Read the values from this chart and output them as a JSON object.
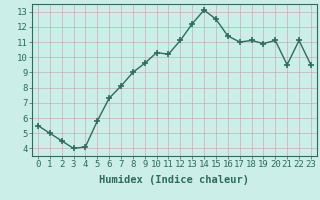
{
  "x": [
    0,
    1,
    2,
    3,
    4,
    5,
    6,
    7,
    8,
    9,
    10,
    11,
    12,
    13,
    14,
    15,
    16,
    17,
    18,
    19,
    20,
    21,
    22,
    23
  ],
  "y": [
    5.5,
    5.0,
    4.5,
    4.0,
    4.1,
    5.8,
    7.3,
    8.1,
    9.0,
    9.6,
    10.3,
    10.2,
    11.1,
    12.2,
    13.1,
    12.5,
    11.4,
    11.0,
    11.1,
    10.9,
    11.1,
    9.5,
    11.1,
    9.5
  ],
  "line_color": "#2e6b5e",
  "marker": "+",
  "marker_size": 4,
  "bg_color": "#cceee8",
  "grid_color": "#b0d0cc",
  "xlabel": "Humidex (Indice chaleur)",
  "xlim": [
    -0.5,
    23.5
  ],
  "ylim": [
    3.5,
    13.5
  ],
  "xticks": [
    0,
    1,
    2,
    3,
    4,
    5,
    6,
    7,
    8,
    9,
    10,
    11,
    12,
    13,
    14,
    15,
    16,
    17,
    18,
    19,
    20,
    21,
    22,
    23
  ],
  "yticks": [
    4,
    5,
    6,
    7,
    8,
    9,
    10,
    11,
    12,
    13
  ],
  "tick_fontsize": 6.5,
  "xlabel_fontsize": 7.5,
  "line_width": 1.0,
  "spine_color": "#2e6b5e"
}
